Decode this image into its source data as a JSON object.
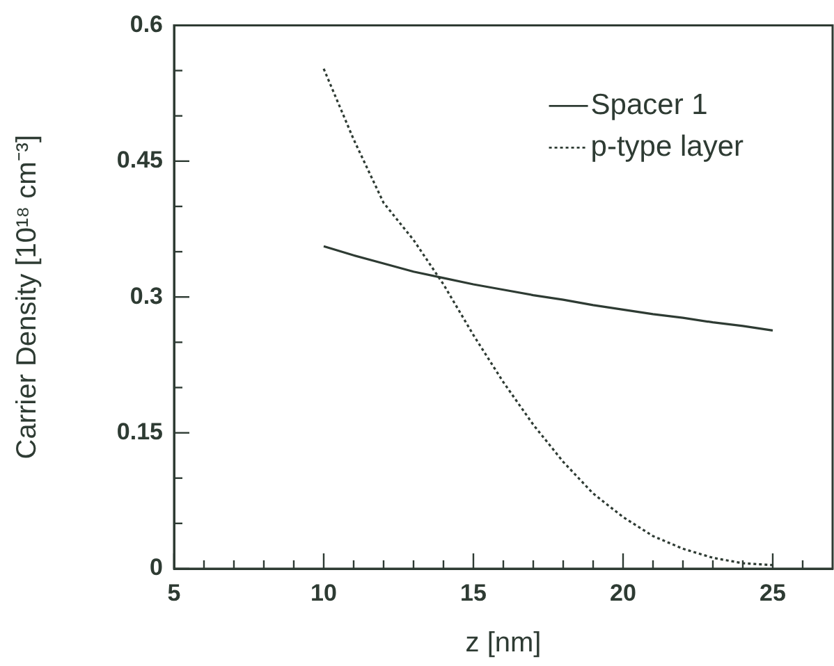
{
  "chart_data": {
    "type": "line",
    "xlabel": "z [nm]",
    "ylabel": "Carrier Density [10¹⁸ cm⁻³]",
    "xlim": [
      5,
      27
    ],
    "xticks": [
      5,
      {
        "value": 6,
        "label": null
      },
      {
        "value": 7,
        "label": null
      },
      {
        "value": 8,
        "label": null
      },
      {
        "value": 9,
        "label": null
      },
      10,
      {
        "value": 11,
        "label": null
      },
      {
        "value": 12,
        "label": null
      },
      {
        "value": 13,
        "label": null
      },
      {
        "value": 14,
        "label": null
      },
      15,
      {
        "value": 16,
        "label": null
      },
      {
        "value": 17,
        "label": null
      },
      {
        "value": 18,
        "label": null
      },
      {
        "value": 19,
        "label": null
      },
      20,
      {
        "value": 21,
        "label": null
      },
      {
        "value": 22,
        "label": null
      },
      {
        "value": 23,
        "label": null
      },
      {
        "value": 24,
        "label": null
      },
      25,
      {
        "value": 26,
        "label": null
      }
    ],
    "ylim": [
      0,
      0.6
    ],
    "yticks": [
      0,
      {
        "value": 0.05,
        "label": null
      },
      {
        "value": 0.1,
        "label": null
      },
      0.15,
      {
        "value": 0.2,
        "label": null
      },
      {
        "value": 0.25,
        "label": null
      },
      0.3,
      {
        "value": 0.35,
        "label": null
      },
      {
        "value": 0.4,
        "label": null
      },
      0.45,
      {
        "value": 0.5,
        "label": null
      },
      {
        "value": 0.55,
        "label": null
      },
      0.6
    ],
    "grid": false,
    "legend": "top right",
    "marker": "none",
    "series": [
      {
        "name": "Spacer 1",
        "color": "#2e3b33",
        "line_style": "solid",
        "x": [
          10,
          11,
          12,
          13,
          14,
          15,
          16,
          17,
          18,
          19,
          20,
          21,
          22,
          23,
          24,
          25
        ],
        "values": [
          0.356,
          0.346,
          0.337,
          0.328,
          0.321,
          0.314,
          0.308,
          0.302,
          0.297,
          0.291,
          0.286,
          0.281,
          0.277,
          0.272,
          0.268,
          0.263
        ]
      },
      {
        "name": "p-type layer",
        "color": "#2e3b33",
        "line_style": "dotted",
        "x": [
          10,
          11,
          12,
          13,
          14,
          15,
          16,
          17,
          18,
          19,
          20,
          21,
          22,
          23,
          24,
          25
        ],
        "values": [
          0.552,
          0.474,
          0.404,
          0.363,
          0.314,
          0.258,
          0.206,
          0.159,
          0.118,
          0.083,
          0.057,
          0.036,
          0.022,
          0.012,
          0.006,
          0.004
        ]
      }
    ]
  }
}
